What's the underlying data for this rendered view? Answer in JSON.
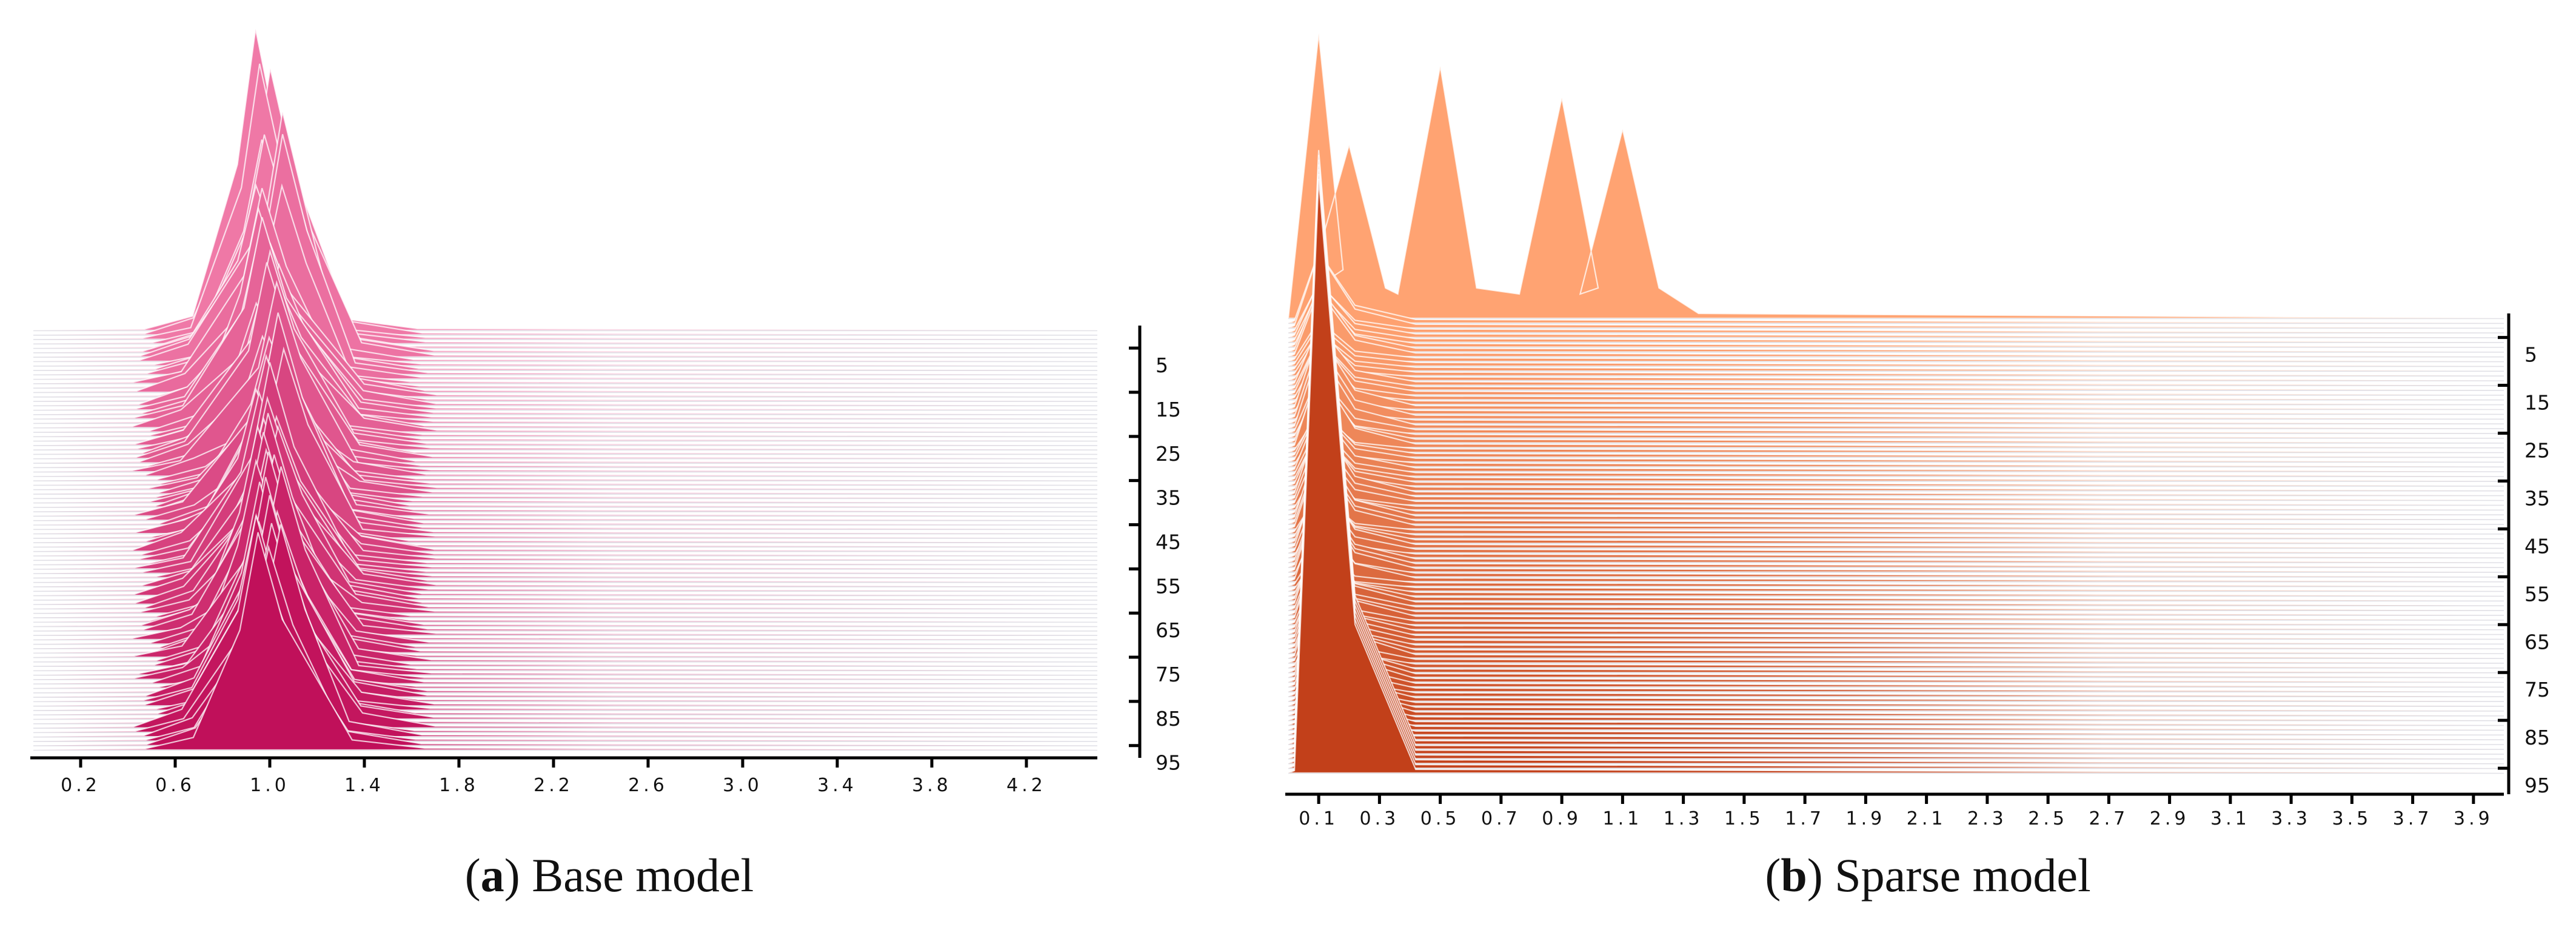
{
  "chart_data": [
    {
      "type": "ridgeline",
      "panel_letter": "a",
      "caption": "Base model",
      "x_ticks": [
        "0.2",
        "0.6",
        "1.0",
        "1.4",
        "1.8",
        "2.2",
        "2.6",
        "3.0",
        "3.4",
        "3.8",
        "4.2"
      ],
      "y_ticks": [
        "5",
        "15",
        "25",
        "35",
        "45",
        "55",
        "65",
        "75",
        "85",
        "95"
      ],
      "xlim": [
        0.0,
        4.5
      ],
      "y_range": [
        1,
        96
      ],
      "grid": false,
      "colors": {
        "back": "#f07aa8",
        "front": "#c0105a"
      },
      "peak_location": 1.0,
      "distribution_spread": [
        0.6,
        1.4
      ]
    },
    {
      "type": "ridgeline",
      "panel_letter": "b",
      "caption": "Sparse model",
      "x_ticks": [
        "0.1",
        "0.3",
        "0.5",
        "0.7",
        "0.9",
        "1.1",
        "1.3",
        "1.5",
        "1.7",
        "1.9",
        "2.1",
        "2.3",
        "2.5",
        "2.7",
        "2.9",
        "3.1",
        "3.3",
        "3.5",
        "3.7",
        "3.9"
      ],
      "y_ticks": [
        "5",
        "15",
        "25",
        "35",
        "45",
        "55",
        "65",
        "75",
        "85",
        "95"
      ],
      "xlim": [
        0.0,
        4.0
      ],
      "y_range": [
        1,
        96
      ],
      "grid": false,
      "colors": {
        "back": "#ffa372",
        "front": "#c2401a"
      },
      "early_layer_peaks": [
        {
          "x": 0.2,
          "height": 0.55
        },
        {
          "x": 0.5,
          "height": 0.8
        },
        {
          "x": 0.9,
          "height": 0.7
        },
        {
          "x": 1.1,
          "height": 0.6
        }
      ],
      "peak_location": 0.1
    }
  ]
}
